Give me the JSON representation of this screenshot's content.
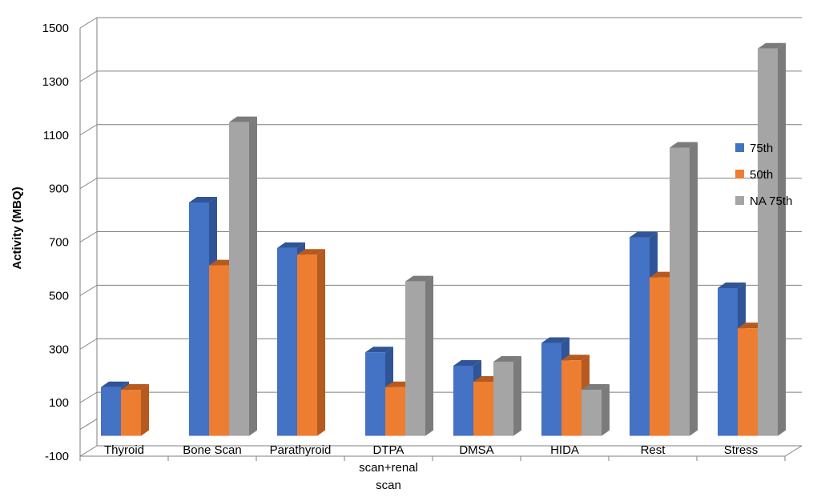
{
  "chart_data": {
    "type": "bar",
    "title": "",
    "xlabel": "",
    "ylabel": "Activity (MBQ)",
    "ylim": [
      -100,
      1500
    ],
    "yticks": [
      -100,
      100,
      300,
      500,
      700,
      900,
      1100,
      1300,
      1500
    ],
    "grid": true,
    "legend_position": "right",
    "categories": [
      [
        "Thyroid"
      ],
      [
        "Bone Scan"
      ],
      [
        "Parathyroid"
      ],
      [
        "DTPA",
        "scan+renal",
        "scan"
      ],
      [
        "DMSA"
      ],
      [
        "HIDA"
      ],
      [
        "Rest"
      ],
      [
        "Stress"
      ]
    ],
    "series": [
      {
        "name": "75th",
        "color": "#4472C4",
        "side": "#2F5597",
        "values": [
          185,
          875,
          705,
          315,
          265,
          350,
          745,
          555
        ]
      },
      {
        "name": "50th",
        "color": "#ED7D31",
        "side": "#B65A1F",
        "values": [
          175,
          640,
          680,
          185,
          205,
          285,
          595,
          405
        ]
      },
      {
        "name": "NA 75th",
        "color": "#A5A5A5",
        "side": "#7B7B7B",
        "values": [
          null,
          1175,
          null,
          580,
          280,
          175,
          1080,
          1450
        ]
      }
    ]
  }
}
